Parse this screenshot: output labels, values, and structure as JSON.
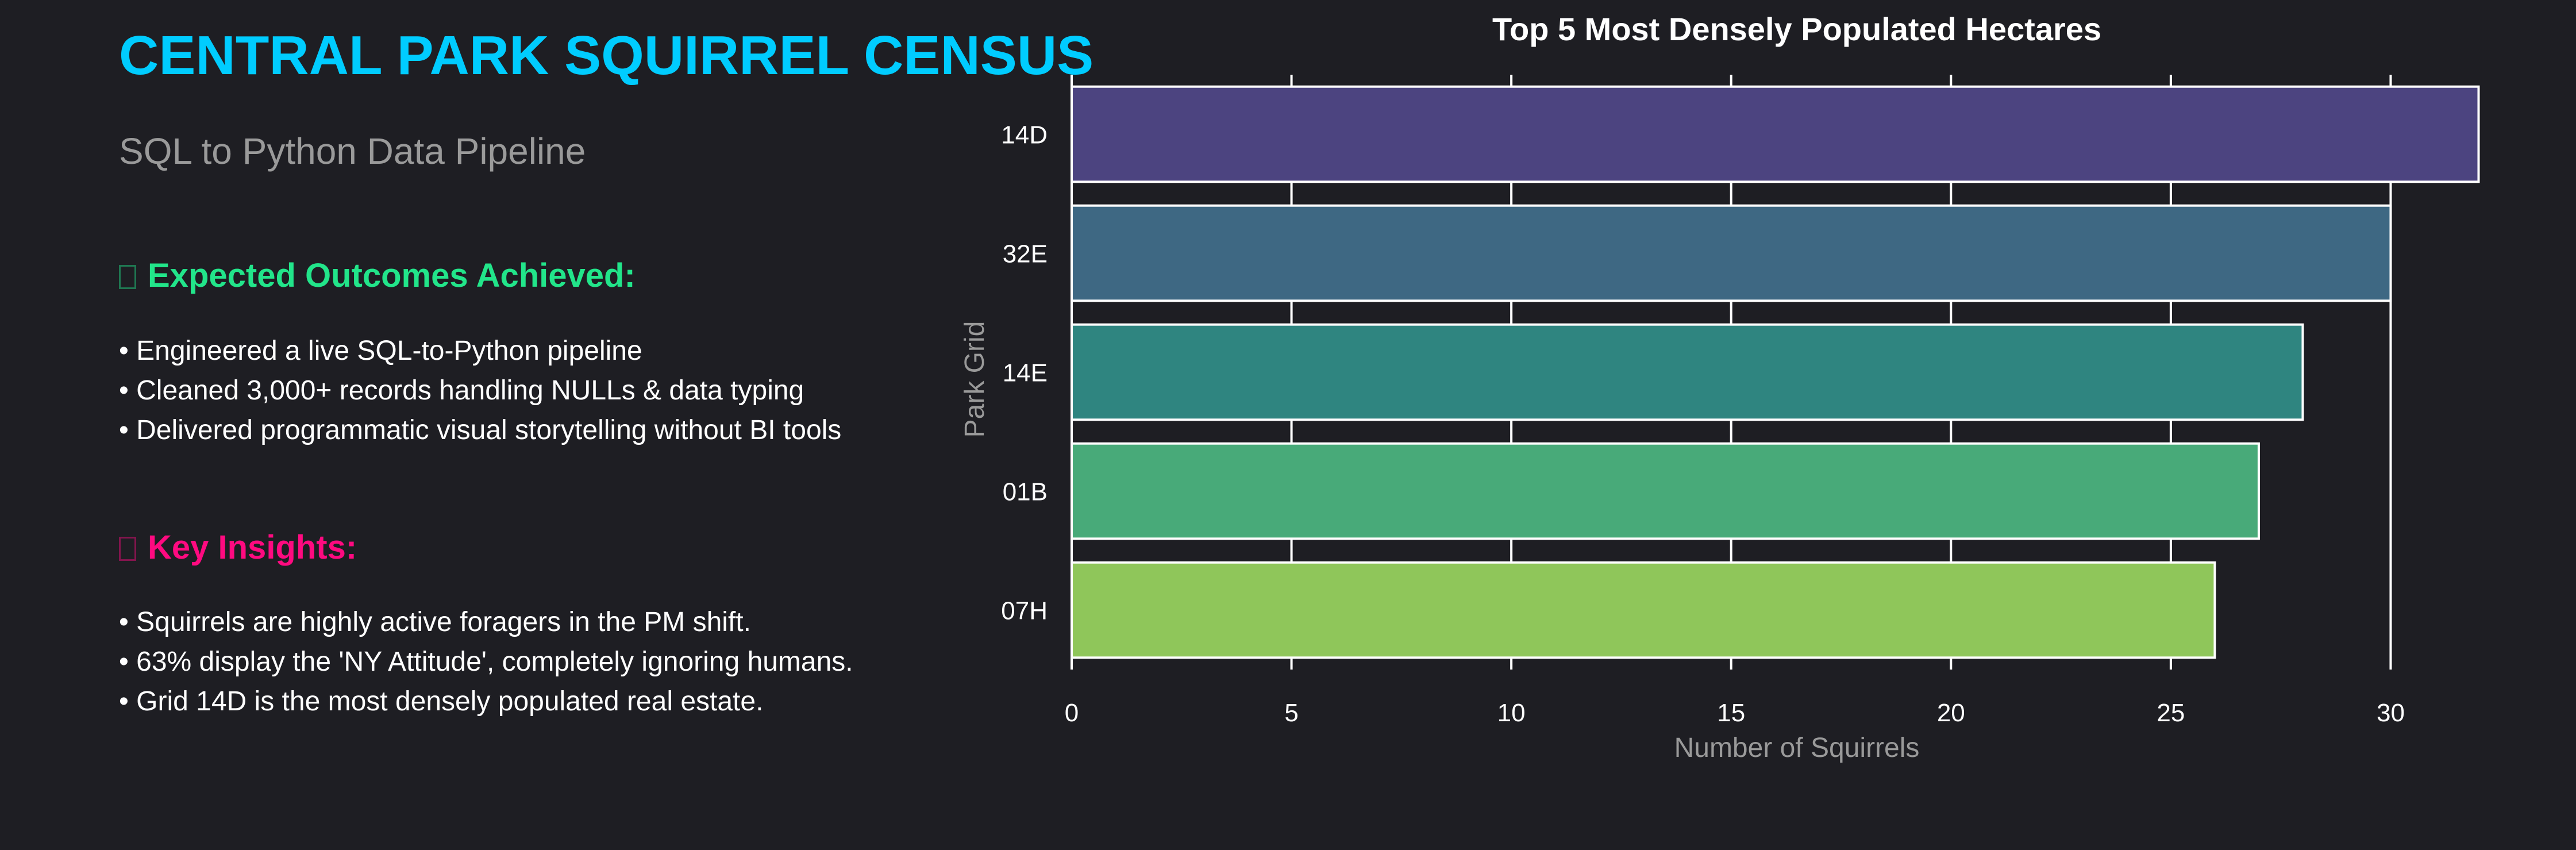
{
  "header": {
    "title": "CENTRAL PARK SQUIRREL CENSUS",
    "subtitle": "SQL to Python Data Pipeline"
  },
  "outcomes": {
    "heading": "Expected Outcomes Achieved:",
    "icon": "checkmark-icon",
    "color": "#22e58a",
    "items": [
      "• Engineered a live SQL-to-Python pipeline",
      "• Cleaned 3,000+ records handling NULLs & data typing",
      "• Delivered programmatic visual storytelling without BI tools"
    ]
  },
  "insights": {
    "heading": "Key Insights:",
    "icon": "lightbulb-icon",
    "color": "#ff0a80",
    "items": [
      "• Squirrels are highly active foragers in the PM shift.",
      "• 63% display the 'NY Attitude', completely ignoring humans.",
      "• Grid 14D is the most densely populated real estate."
    ]
  },
  "colors": {
    "background": "#1e1e23",
    "title": "#00ccff",
    "subtitle": "#9a9a9a",
    "axis": "#ffffff",
    "axis_label": "#9a9a9a"
  },
  "chart_data": {
    "type": "bar",
    "orientation": "horizontal",
    "title": "Top 5 Most Densely Populated Hectares",
    "xlabel": "Number of Squirrels",
    "ylabel": "Park Grid",
    "categories": [
      "14D",
      "32E",
      "14E",
      "01B",
      "07H"
    ],
    "values": [
      32,
      30,
      28,
      27,
      26
    ],
    "bar_colors": [
      "#4c4480",
      "#3e6883",
      "#2f8580",
      "#48aa79",
      "#8fc65a"
    ],
    "xlim": [
      0,
      33
    ],
    "xticks": [
      "0",
      "5",
      "10",
      "15",
      "20",
      "25",
      "30"
    ],
    "grid": true,
    "legend": "none"
  }
}
